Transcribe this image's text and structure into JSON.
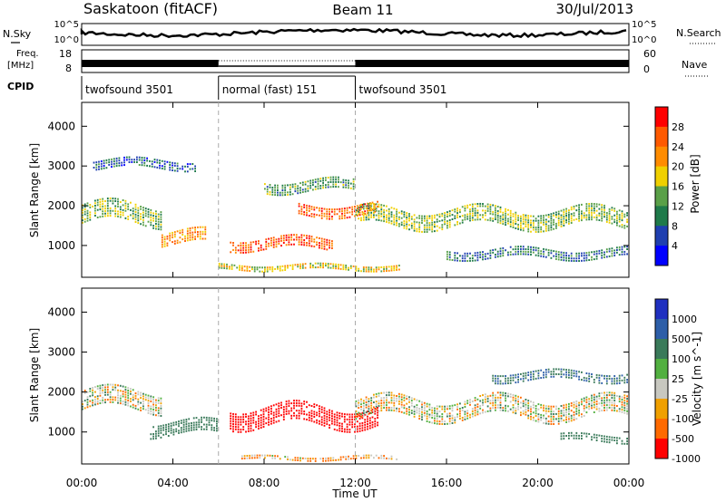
{
  "header": {
    "title": "Saskatoon (fitACF)",
    "beam": "Beam 11",
    "date": "30/Jul/2013"
  },
  "status_panels": {
    "nsky_label": "N.Sky",
    "nsky_ticks": [
      "10^5",
      "10^0"
    ],
    "nsearch_label": "N.Search",
    "nsearch_ticks": [
      "10^5",
      "10^0"
    ],
    "freq_label": "Freq.",
    "freq_unit": "[MHz]",
    "freq_ticks": [
      "18",
      "8"
    ],
    "nave_label": "Nave",
    "nave_ticks": [
      "60",
      "0"
    ],
    "cpid_label": "CPID",
    "cpid_segments": [
      {
        "label": "twofsound 3501",
        "start_hour": 0,
        "end_hour": 6
      },
      {
        "label": "normal (fast) 151",
        "start_hour": 6,
        "end_hour": 12
      },
      {
        "label": "twofsound 3501",
        "start_hour": 12,
        "end_hour": 24
      }
    ]
  },
  "x_axis": {
    "label": "Time UT",
    "ticks": [
      "00:00",
      "04:00",
      "08:00",
      "12:00",
      "16:00",
      "20:00",
      "00:00"
    ]
  },
  "chart_data": [
    {
      "type": "heatmap",
      "panel": "power",
      "xlabel": "Time UT",
      "ylabel": "Slant Range [km]",
      "xlim_hours": [
        0,
        24
      ],
      "ylim_km": [
        200,
        4600
      ],
      "y_ticks": [
        "1000",
        "2000",
        "3000",
        "4000"
      ],
      "colorbar": {
        "label": "Power [dB]",
        "ticks": [
          "28",
          "24",
          "20",
          "16",
          "12",
          "8",
          "4"
        ],
        "colors": [
          "#0000ff",
          "#1f3fb0",
          "#1f7a4a",
          "#5aa048",
          "#f0d000",
          "#ff8c00",
          "#ff5a00",
          "#ff0000"
        ]
      },
      "echo_bands": [
        {
          "start_hour": 0,
          "end_hour": 3.5,
          "center_km": 1800,
          "width_km": 500,
          "power_db": 14
        },
        {
          "start_hour": 3.5,
          "end_hour": 5.5,
          "center_km": 1200,
          "width_km": 350,
          "power_db": 22
        },
        {
          "start_hour": 6.5,
          "end_hour": 11,
          "center_km": 1050,
          "width_km": 300,
          "power_db": 26
        },
        {
          "start_hour": 9.5,
          "end_hour": 13,
          "center_km": 1900,
          "width_km": 300,
          "power_db": 25
        },
        {
          "start_hour": 12,
          "end_hour": 24,
          "center_km": 1700,
          "width_km": 450,
          "power_db": 15
        },
        {
          "start_hour": 0.5,
          "end_hour": 5,
          "center_km": 3050,
          "width_km": 250,
          "power_db": 8
        },
        {
          "start_hour": 8,
          "end_hour": 12,
          "center_km": 2500,
          "width_km": 300,
          "power_db": 12
        },
        {
          "start_hour": 6,
          "end_hour": 14,
          "center_km": 450,
          "width_km": 150,
          "power_db": 18
        },
        {
          "start_hour": 16,
          "end_hour": 24,
          "center_km": 800,
          "width_km": 250,
          "power_db": 9
        }
      ]
    },
    {
      "type": "heatmap",
      "panel": "velocity",
      "xlabel": "Time UT",
      "ylabel": "Slant Range [km]",
      "xlim_hours": [
        0,
        24
      ],
      "ylim_km": [
        200,
        4600
      ],
      "y_ticks": [
        "1000",
        "2000",
        "3000",
        "4000"
      ],
      "colorbar": {
        "label": "Velocity [m s^-1]",
        "ticks": [
          "1000",
          "500",
          "100",
          "25",
          "-25",
          "-100",
          "-500",
          "-1000"
        ],
        "colors": [
          "#2030c0",
          "#2d5ea8",
          "#3a7a5a",
          "#52b040",
          "#c8c8c0",
          "#f0a000",
          "#ff6a00",
          "#ff0000"
        ]
      },
      "echo_bands": [
        {
          "start_hour": 0,
          "end_hour": 3.5,
          "center_km": 1800,
          "width_km": 500,
          "velocity": 0
        },
        {
          "start_hour": 3,
          "end_hour": 6,
          "center_km": 1100,
          "width_km": 350,
          "velocity": 150
        },
        {
          "start_hour": 6.5,
          "end_hour": 13,
          "center_km": 1400,
          "width_km": 500,
          "velocity": -400
        },
        {
          "start_hour": 12,
          "end_hour": 24,
          "center_km": 1600,
          "width_km": 500,
          "velocity": 0
        },
        {
          "start_hour": 7,
          "end_hour": 14,
          "center_km": 350,
          "width_km": 120,
          "velocity": -60
        },
        {
          "start_hour": 21,
          "end_hour": 24,
          "center_km": 850,
          "width_km": 200,
          "velocity": 200
        },
        {
          "start_hour": 18,
          "end_hour": 24,
          "center_km": 2400,
          "width_km": 250,
          "velocity": 300
        }
      ]
    }
  ]
}
